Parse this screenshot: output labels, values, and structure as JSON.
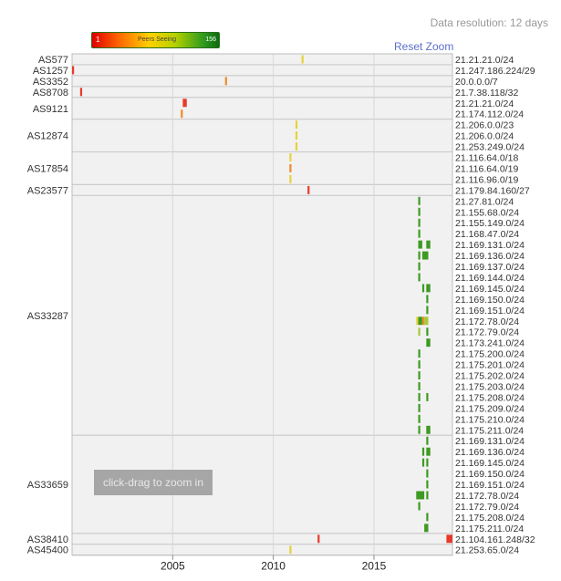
{
  "header": {
    "resolution_label": "Data resolution: 12 days",
    "reset_zoom_label": "Reset Zoom",
    "zoom_hint": "click-drag to zoom in"
  },
  "legend": {
    "min_label": "1",
    "mid_label": "Peers Seeing",
    "max_label": "156"
  },
  "colors": {
    "low": "#e83a2a",
    "mid": "#e6d23a",
    "high": "#3e9a22",
    "grid": "#d8d8d8"
  },
  "chart_data": {
    "type": "heatmap",
    "title": "",
    "xlabel": "",
    "ylabel": "",
    "xlim": [
      2000.0,
      2018.9
    ],
    "x_ticks": [
      2005,
      2010,
      2015
    ],
    "color_scale": {
      "label": "Peers Seeing",
      "min": 1,
      "max": 156
    },
    "groups": [
      {
        "asn": "AS577",
        "prefixes": [
          {
            "prefix": "21.21.21.0/24",
            "segments": [
              [
                2011.4,
                2011.5,
                60
              ]
            ]
          }
        ]
      },
      {
        "asn": "AS1257",
        "prefixes": [
          {
            "prefix": "21.247.186.224/29",
            "segments": [
              [
                2000.0,
                2000.1,
                5
              ]
            ]
          }
        ]
      },
      {
        "asn": "AS3352",
        "prefixes": [
          {
            "prefix": "20.0.0.0/7",
            "segments": [
              [
                2007.6,
                2007.7,
                40
              ]
            ]
          }
        ]
      },
      {
        "asn": "AS8708",
        "prefixes": [
          {
            "prefix": "21.7.38.118/32",
            "segments": [
              [
                2000.4,
                2000.5,
                5
              ]
            ]
          }
        ]
      },
      {
        "asn": "AS9121",
        "prefixes": [
          {
            "prefix": "21.21.21.0/24",
            "segments": [
              [
                2005.5,
                2005.7,
                5
              ]
            ]
          },
          {
            "prefix": "21.174.112.0/24",
            "segments": [
              [
                2005.4,
                2005.5,
                20
              ]
            ]
          }
        ]
      },
      {
        "asn": "AS12874",
        "prefixes": [
          {
            "prefix": "21.206.0.0/23",
            "segments": [
              [
                2011.1,
                2011.2,
                60
              ]
            ]
          },
          {
            "prefix": "21.206.0.0/24",
            "segments": [
              [
                2011.1,
                2011.2,
                60
              ]
            ]
          },
          {
            "prefix": "21.253.249.0/24",
            "segments": [
              [
                2011.1,
                2011.2,
                60
              ]
            ]
          }
        ]
      },
      {
        "asn": "AS17854",
        "prefixes": [
          {
            "prefix": "21.116.64.0/18",
            "segments": [
              [
                2010.8,
                2010.9,
                60
              ]
            ]
          },
          {
            "prefix": "21.116.64.0/19",
            "segments": [
              [
                2010.8,
                2010.9,
                20
              ]
            ]
          },
          {
            "prefix": "21.116.96.0/19",
            "segments": [
              [
                2010.8,
                2010.9,
                60
              ]
            ]
          }
        ]
      },
      {
        "asn": "AS23577",
        "prefixes": [
          {
            "prefix": "21.179.84.160/27",
            "segments": [
              [
                2011.7,
                2011.8,
                5
              ]
            ]
          }
        ]
      },
      {
        "asn": "AS33287",
        "prefixes": [
          {
            "prefix": "21.27.81.0/24",
            "segments": [
              [
                2017.2,
                2017.3,
                150
              ]
            ]
          },
          {
            "prefix": "21.155.68.0/24",
            "segments": [
              [
                2017.2,
                2017.3,
                150
              ]
            ]
          },
          {
            "prefix": "21.155.149.0/24",
            "segments": [
              [
                2017.2,
                2017.3,
                150
              ]
            ]
          },
          {
            "prefix": "21.168.47.0/24",
            "segments": [
              [
                2017.2,
                2017.3,
                150
              ]
            ]
          },
          {
            "prefix": "21.169.131.0/24",
            "segments": [
              [
                2017.2,
                2017.4,
                150
              ],
              [
                2017.6,
                2017.8,
                150
              ]
            ]
          },
          {
            "prefix": "21.169.136.0/24",
            "segments": [
              [
                2017.2,
                2017.3,
                150
              ],
              [
                2017.4,
                2017.7,
                150
              ]
            ]
          },
          {
            "prefix": "21.169.137.0/24",
            "segments": [
              [
                2017.2,
                2017.3,
                150
              ]
            ]
          },
          {
            "prefix": "21.169.144.0/24",
            "segments": [
              [
                2017.2,
                2017.3,
                150
              ]
            ]
          },
          {
            "prefix": "21.169.145.0/24",
            "segments": [
              [
                2017.4,
                2017.5,
                150
              ],
              [
                2017.6,
                2017.8,
                150
              ]
            ]
          },
          {
            "prefix": "21.169.150.0/24",
            "segments": [
              [
                2017.6,
                2017.7,
                150
              ]
            ]
          },
          {
            "prefix": "21.169.151.0/24",
            "segments": [
              [
                2017.6,
                2017.7,
                150
              ]
            ]
          },
          {
            "prefix": "21.172.78.0/24",
            "segments": [
              [
                2017.1,
                2017.2,
                60
              ],
              [
                2017.2,
                2017.4,
                120
              ],
              [
                2017.4,
                2017.5,
                20
              ],
              [
                2017.5,
                2017.7,
                100
              ]
            ]
          },
          {
            "prefix": "21.172.79.0/24",
            "segments": [
              [
                2017.2,
                2017.3,
                100
              ],
              [
                2017.6,
                2017.7,
                150
              ]
            ]
          },
          {
            "prefix": "21.173.241.0/24",
            "segments": [
              [
                2017.6,
                2017.8,
                150
              ]
            ]
          },
          {
            "prefix": "21.175.200.0/24",
            "segments": [
              [
                2017.2,
                2017.3,
                150
              ]
            ]
          },
          {
            "prefix": "21.175.201.0/24",
            "segments": [
              [
                2017.2,
                2017.3,
                150
              ]
            ]
          },
          {
            "prefix": "21.175.202.0/24",
            "segments": [
              [
                2017.2,
                2017.3,
                150
              ]
            ]
          },
          {
            "prefix": "21.175.203.0/24",
            "segments": [
              [
                2017.2,
                2017.3,
                150
              ]
            ]
          },
          {
            "prefix": "21.175.208.0/24",
            "segments": [
              [
                2017.2,
                2017.3,
                150
              ],
              [
                2017.6,
                2017.7,
                150
              ]
            ]
          },
          {
            "prefix": "21.175.209.0/24",
            "segments": [
              [
                2017.2,
                2017.3,
                150
              ]
            ]
          },
          {
            "prefix": "21.175.210.0/24",
            "segments": [
              [
                2017.2,
                2017.3,
                150
              ]
            ]
          },
          {
            "prefix": "21.175.211.0/24",
            "segments": [
              [
                2017.2,
                2017.3,
                150
              ],
              [
                2017.6,
                2017.8,
                150
              ]
            ]
          }
        ]
      },
      {
        "asn": "AS33659",
        "prefixes": [
          {
            "prefix": "21.169.131.0/24",
            "segments": [
              [
                2017.6,
                2017.7,
                150
              ]
            ]
          },
          {
            "prefix": "21.169.136.0/24",
            "segments": [
              [
                2017.4,
                2017.5,
                150
              ],
              [
                2017.6,
                2017.8,
                150
              ]
            ]
          },
          {
            "prefix": "21.169.145.0/24",
            "segments": [
              [
                2017.4,
                2017.5,
                150
              ],
              [
                2017.6,
                2017.7,
                150
              ]
            ]
          },
          {
            "prefix": "21.169.150.0/24",
            "segments": [
              [
                2017.6,
                2017.7,
                150
              ]
            ]
          },
          {
            "prefix": "21.169.151.0/24",
            "segments": [
              [
                2017.6,
                2017.7,
                150
              ]
            ]
          },
          {
            "prefix": "21.172.78.0/24",
            "segments": [
              [
                2017.1,
                2017.5,
                150
              ],
              [
                2017.6,
                2017.7,
                150
              ]
            ]
          },
          {
            "prefix": "21.172.79.0/24",
            "segments": [
              [
                2017.2,
                2017.3,
                150
              ]
            ]
          },
          {
            "prefix": "21.175.208.0/24",
            "segments": [
              [
                2017.6,
                2017.7,
                150
              ]
            ]
          },
          {
            "prefix": "21.175.211.0/24",
            "segments": [
              [
                2017.5,
                2017.7,
                150
              ]
            ]
          }
        ]
      },
      {
        "asn": "AS38410",
        "prefixes": [
          {
            "prefix": "21.104.161.248/32",
            "segments": [
              [
                2012.2,
                2012.3,
                5
              ],
              [
                2018.6,
                2018.9,
                5
              ]
            ]
          }
        ]
      },
      {
        "asn": "AS45400",
        "prefixes": [
          {
            "prefix": "21.253.65.0/24",
            "segments": [
              [
                2010.8,
                2010.9,
                60
              ]
            ]
          }
        ]
      }
    ]
  }
}
